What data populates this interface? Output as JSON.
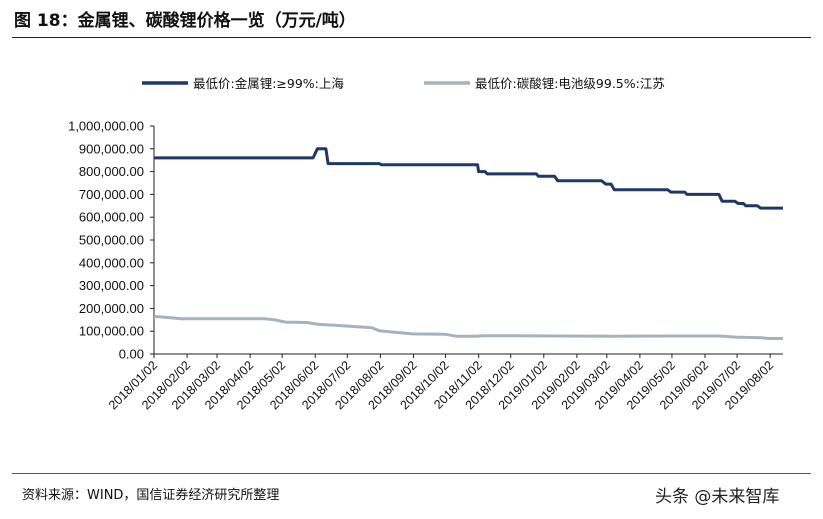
{
  "figure": {
    "title": "图 18：金属锂、碳酸锂价格一览（万元/吨）",
    "source": "资料来源：WIND，国信证券经济研究所整理",
    "watermark": "头条 @未来智库"
  },
  "chart_data": {
    "type": "line",
    "title": "",
    "xlabel": "",
    "ylabel": "",
    "ylim": [
      0,
      1000000
    ],
    "yticks": [
      "1,000,000.00",
      "900,000.00",
      "800,000.00",
      "700,000.00",
      "600,000.00",
      "500,000.00",
      "400,000.00",
      "300,000.00",
      "200,000.00",
      "100,000.00",
      "0.00"
    ],
    "x_range": [
      "2018/01/02",
      "2019/08/14"
    ],
    "xticks": [
      "2018/01/02",
      "2018/02/02",
      "2018/03/02",
      "2018/04/02",
      "2018/05/02",
      "2018/06/02",
      "2018/07/02",
      "2018/08/02",
      "2018/09/02",
      "2018/10/02",
      "2018/11/02",
      "2018/12/02",
      "2019/01/02",
      "2019/02/02",
      "2019/03/02",
      "2019/04/02",
      "2019/05/02",
      "2019/06/02",
      "2019/07/02",
      "2019/08/02"
    ],
    "legend_position": "top",
    "grid": false,
    "series": [
      {
        "name": "最低价:金属锂:≥99%:上海",
        "color": "#1f3864",
        "points": [
          [
            "2018/01/02",
            860000
          ],
          [
            "2018/05/31",
            860000
          ],
          [
            "2018/06/04",
            900000
          ],
          [
            "2018/06/12",
            900000
          ],
          [
            "2018/06/14",
            835000
          ],
          [
            "2018/08/01",
            835000
          ],
          [
            "2018/08/03",
            830000
          ],
          [
            "2018/11/01",
            830000
          ],
          [
            "2018/11/02",
            800000
          ],
          [
            "2018/11/08",
            800000
          ],
          [
            "2018/11/10",
            790000
          ],
          [
            "2018/12/26",
            790000
          ],
          [
            "2018/12/28",
            780000
          ],
          [
            "2019/01/12",
            780000
          ],
          [
            "2019/01/15",
            760000
          ],
          [
            "2019/02/25",
            760000
          ],
          [
            "2019/03/01",
            745000
          ],
          [
            "2019/03/06",
            745000
          ],
          [
            "2019/03/09",
            720000
          ],
          [
            "2019/04/28",
            720000
          ],
          [
            "2019/05/01",
            710000
          ],
          [
            "2019/05/14",
            710000
          ],
          [
            "2019/05/16",
            700000
          ],
          [
            "2019/06/15",
            700000
          ],
          [
            "2019/06/18",
            670000
          ],
          [
            "2019/06/30",
            670000
          ],
          [
            "2019/07/03",
            660000
          ],
          [
            "2019/07/08",
            660000
          ],
          [
            "2019/07/10",
            650000
          ],
          [
            "2019/07/21",
            650000
          ],
          [
            "2019/07/24",
            640000
          ],
          [
            "2019/08/14",
            640000
          ]
        ]
      },
      {
        "name": "最低价:碳酸锂:电池级99.5%:江苏",
        "color": "#a5b3c0",
        "points": [
          [
            "2018/01/02",
            165000
          ],
          [
            "2018/01/15",
            160000
          ],
          [
            "2018/01/28",
            155000
          ],
          [
            "2018/04/15",
            155000
          ],
          [
            "2018/04/25",
            150000
          ],
          [
            "2018/05/05",
            140000
          ],
          [
            "2018/05/25",
            138000
          ],
          [
            "2018/06/05",
            130000
          ],
          [
            "2018/06/20",
            126000
          ],
          [
            "2018/07/10",
            120000
          ],
          [
            "2018/07/25",
            115000
          ],
          [
            "2018/08/01",
            102000
          ],
          [
            "2018/08/15",
            95000
          ],
          [
            "2018/09/01",
            88000
          ],
          [
            "2018/10/01",
            87000
          ],
          [
            "2018/10/12",
            78000
          ],
          [
            "2018/11/01",
            78000
          ],
          [
            "2018/11/05",
            80000
          ],
          [
            "2018/12/10",
            80000
          ],
          [
            "2019/01/15",
            79000
          ],
          [
            "2019/03/10",
            78000
          ],
          [
            "2019/05/01",
            79000
          ],
          [
            "2019/06/15",
            79000
          ],
          [
            "2019/07/01",
            74000
          ],
          [
            "2019/07/25",
            71000
          ],
          [
            "2019/08/01",
            68000
          ],
          [
            "2019/08/14",
            68000
          ]
        ]
      }
    ]
  }
}
